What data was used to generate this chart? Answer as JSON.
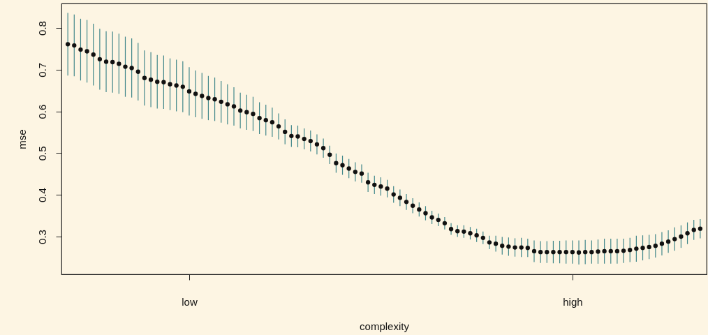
{
  "chart_data": {
    "type": "scatter",
    "xlabel": "complexity",
    "ylabel": "mse",
    "marker": "circle",
    "categories": [
      null,
      null,
      null,
      null,
      null,
      null,
      null,
      null,
      null,
      null,
      null,
      null,
      null,
      null,
      null,
      null,
      null,
      null,
      null,
      "low",
      null,
      null,
      null,
      null,
      null,
      null,
      null,
      null,
      null,
      null,
      null,
      null,
      null,
      null,
      null,
      null,
      null,
      null,
      null,
      null,
      null,
      null,
      null,
      null,
      null,
      null,
      null,
      null,
      null,
      null,
      null,
      null,
      null,
      null,
      null,
      null,
      null,
      null,
      null,
      null,
      null,
      null,
      null,
      null,
      null,
      null,
      null,
      null,
      null,
      null,
      null,
      null,
      null,
      null,
      null,
      null,
      null,
      null,
      null,
      "high",
      null,
      null,
      null,
      null,
      null,
      null,
      null,
      null,
      null,
      null,
      null,
      null,
      null,
      null,
      null,
      null,
      null,
      null,
      null,
      null
    ],
    "ylim": [
      0.2097,
      0.8585
    ],
    "yticks": [
      0.3,
      0.4,
      0.5,
      0.6,
      0.7,
      0.8
    ],
    "series": [
      {
        "color": "#111111",
        "values": [
          0.761,
          0.758,
          0.748,
          0.744,
          0.736,
          0.725,
          0.719,
          0.718,
          0.714,
          0.707,
          0.704,
          0.695,
          0.68,
          0.676,
          0.671,
          0.67,
          0.665,
          0.662,
          0.659,
          0.648,
          0.642,
          0.637,
          0.632,
          0.629,
          0.623,
          0.617,
          0.612,
          0.602,
          0.598,
          0.594,
          0.584,
          0.579,
          0.574,
          0.564,
          0.551,
          0.541,
          0.54,
          0.534,
          0.529,
          0.521,
          0.512,
          0.496,
          0.476,
          0.471,
          0.463,
          0.455,
          0.451,
          0.43,
          0.424,
          0.42,
          0.415,
          0.401,
          0.393,
          0.383,
          0.374,
          0.365,
          0.356,
          0.346,
          0.34,
          0.332,
          0.318,
          0.313,
          0.312,
          0.308,
          0.303,
          0.297,
          0.286,
          0.283,
          0.278,
          0.276,
          0.274,
          0.274,
          0.273,
          0.265,
          0.263,
          0.263,
          0.263,
          0.263,
          0.263,
          0.263,
          0.262,
          0.263,
          0.263,
          0.264,
          0.265,
          0.265,
          0.265,
          0.266,
          0.268,
          0.271,
          0.273,
          0.275,
          0.278,
          0.283,
          0.288,
          0.294,
          0.3,
          0.308,
          0.316,
          0.319
        ],
        "errors": [
          0.075,
          0.074,
          0.074,
          0.075,
          0.074,
          0.073,
          0.073,
          0.073,
          0.072,
          0.072,
          0.071,
          0.069,
          0.066,
          0.066,
          0.064,
          0.064,
          0.062,
          0.062,
          0.061,
          0.058,
          0.056,
          0.055,
          0.053,
          0.052,
          0.05,
          0.048,
          0.046,
          0.043,
          0.042,
          0.041,
          0.038,
          0.037,
          0.035,
          0.031,
          0.03,
          0.026,
          0.026,
          0.025,
          0.025,
          0.024,
          0.023,
          0.022,
          0.023,
          0.023,
          0.023,
          0.023,
          0.022,
          0.023,
          0.022,
          0.022,
          0.021,
          0.02,
          0.02,
          0.019,
          0.018,
          0.017,
          0.017,
          0.016,
          0.015,
          0.015,
          0.014,
          0.014,
          0.015,
          0.015,
          0.016,
          0.015,
          0.016,
          0.019,
          0.021,
          0.022,
          0.022,
          0.023,
          0.022,
          0.026,
          0.026,
          0.026,
          0.027,
          0.027,
          0.028,
          0.028,
          0.029,
          0.029,
          0.028,
          0.029,
          0.03,
          0.03,
          0.03,
          0.029,
          0.029,
          0.031,
          0.03,
          0.029,
          0.028,
          0.028,
          0.027,
          0.028,
          0.027,
          0.026,
          0.024,
          0.023
        ]
      }
    ]
  }
}
